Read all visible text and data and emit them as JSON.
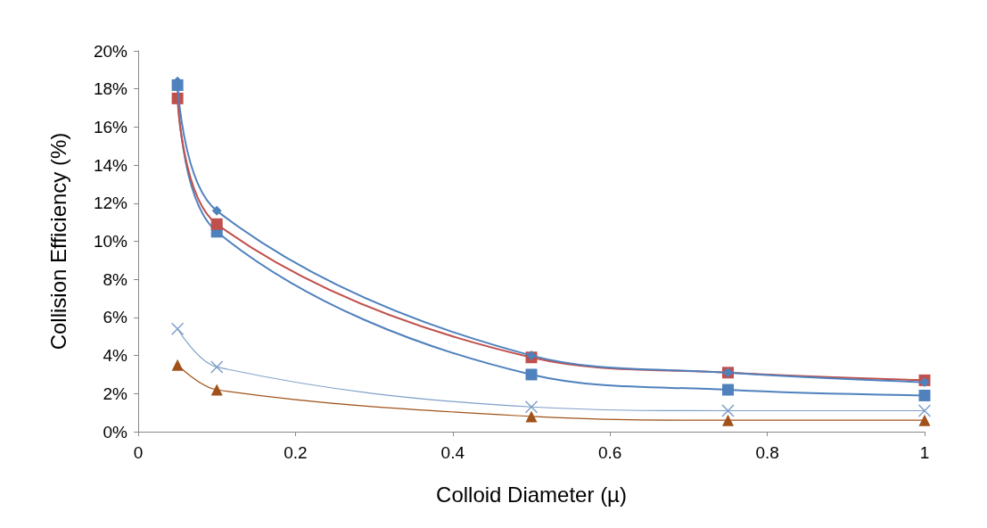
{
  "chart_data": {
    "type": "line",
    "xlabel": "Colloid Diameter (µ)",
    "ylabel": "Collision Efficiency (%)",
    "x": [
      0.05,
      0.1,
      0.5,
      0.75,
      1
    ],
    "series": [
      {
        "color": "#4f81bd",
        "marker": "diamond",
        "values": [
          18.4,
          11.6,
          4.0,
          3.1,
          2.6
        ]
      },
      {
        "color": "#c0504d",
        "marker": "square",
        "values": [
          17.5,
          10.9,
          3.9,
          3.1,
          2.7
        ]
      },
      {
        "color": "#4f81bd",
        "marker": "square",
        "values": [
          18.2,
          10.5,
          3.0,
          2.2,
          1.9
        ]
      },
      {
        "color": "#7f9fc8",
        "marker": "cross",
        "values": [
          5.4,
          3.4,
          1.3,
          1.1,
          1.1
        ]
      },
      {
        "color": "#a0521a",
        "marker": "triangle",
        "values": [
          3.5,
          2.2,
          0.8,
          0.6,
          0.6
        ]
      }
    ],
    "xlim": [
      0,
      1
    ],
    "xticks": [
      0,
      0.2,
      0.4,
      0.6,
      0.8,
      1
    ],
    "ylim": [
      0,
      20
    ],
    "yticks": [
      {
        "value": 0,
        "label": "0%"
      },
      {
        "value": 2,
        "label": "2%"
      },
      {
        "value": 4,
        "label": "4%"
      },
      {
        "value": 6,
        "label": "6%"
      },
      {
        "value": 8,
        "label": "8%"
      },
      {
        "value": 10,
        "label": "10%"
      },
      {
        "value": 12,
        "label": "12%"
      },
      {
        "value": 14,
        "label": "14%"
      },
      {
        "value": 16,
        "label": "16%"
      },
      {
        "value": 18,
        "label": "18%"
      },
      {
        "value": 20,
        "label": "20%"
      }
    ],
    "grid": false,
    "line_style": "solid"
  }
}
